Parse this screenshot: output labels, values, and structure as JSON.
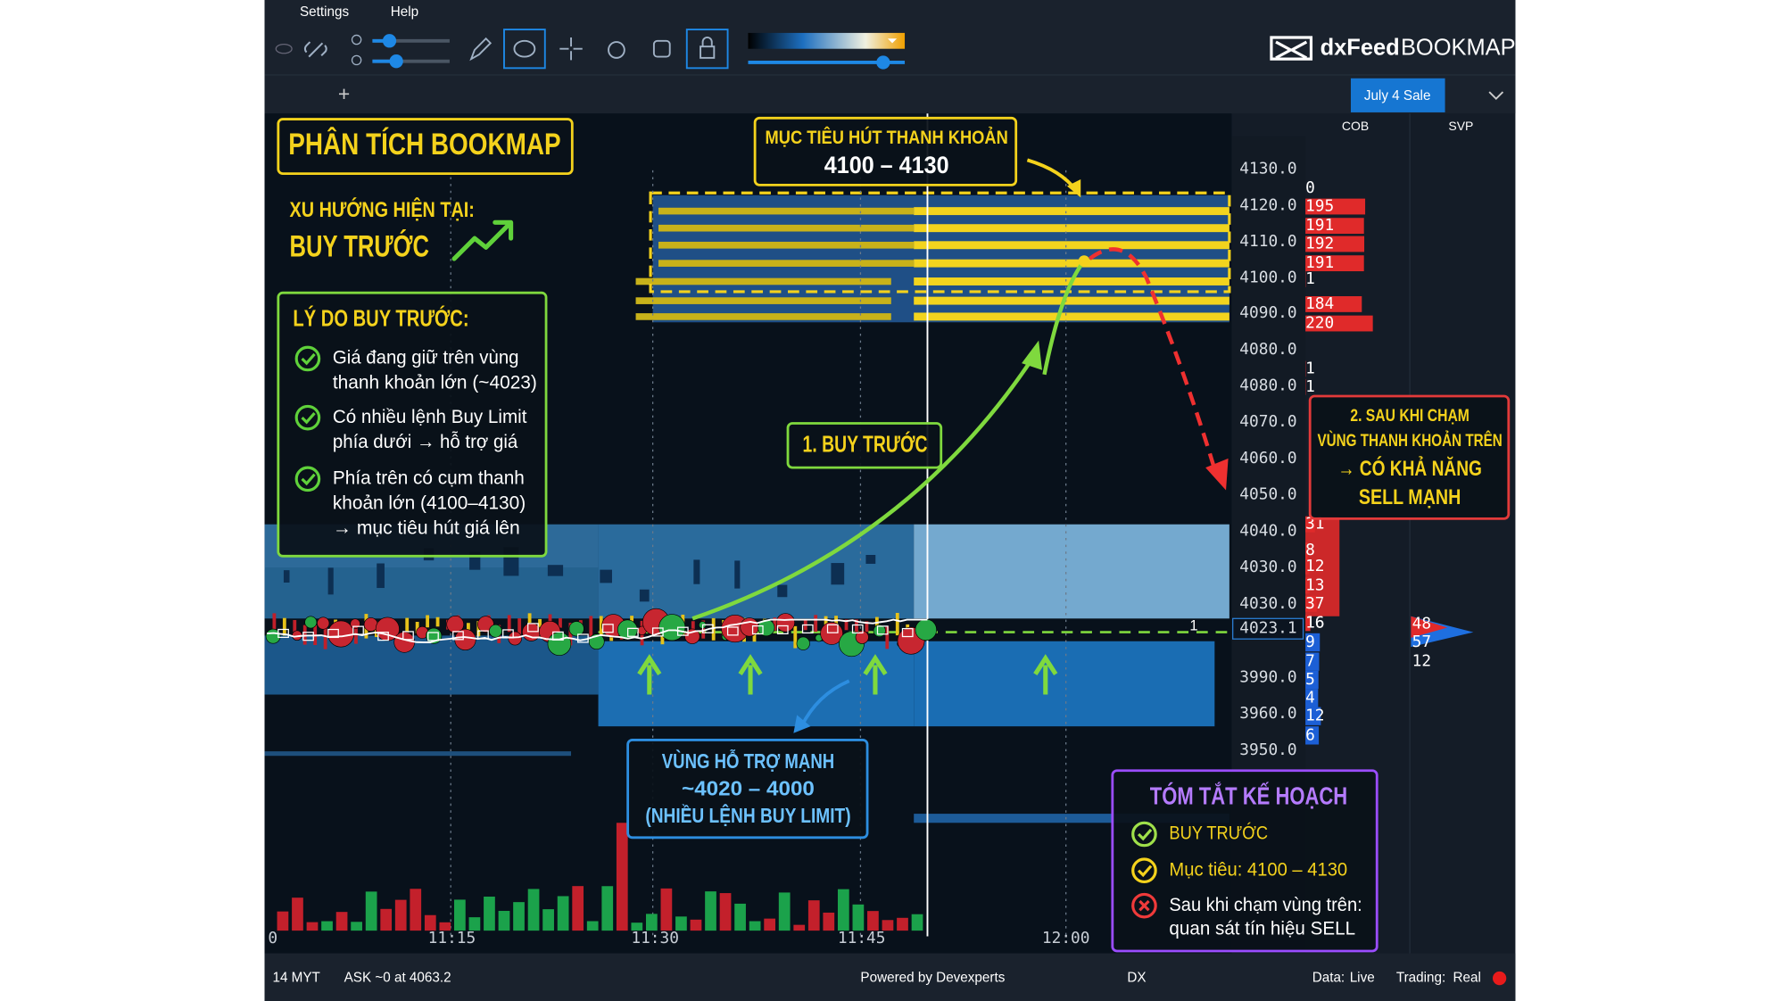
{
  "menu": {
    "settings": "Settings",
    "help": "Help"
  },
  "logo": {
    "brand": "dxFeed",
    "product": "BOOKMAP"
  },
  "promo_button": "July 4 Sale",
  "new_tab": "+",
  "columns": {
    "cob": "COB",
    "svp": "SVP"
  },
  "price_axis": [
    "4130.0",
    "4120.0",
    "4110.0",
    "4100.0",
    "4090.0",
    "4080.0",
    "4080.0",
    "4070.0",
    "4060.0",
    "4050.0",
    "4040.0",
    "4030.0",
    "4030.0",
    "3990.0",
    "3960.0",
    "3950.0"
  ],
  "current_price": "4023.1",
  "time_axis": [
    "0",
    "11:15",
    "11:30",
    "11:45",
    "12:00"
  ],
  "cob": {
    "ask": [
      0,
      195,
      191,
      192,
      191,
      1,
      184,
      220,
      1,
      1,
      31,
      8,
      12,
      13,
      37,
      16
    ],
    "bid": [
      9,
      7,
      5,
      4,
      12,
      6
    ]
  },
  "svp": [
    48,
    57,
    12
  ],
  "trade_marker": "1",
  "annotations": {
    "title": "PHÂN TÍCH BOOKMAP",
    "trend": {
      "label": "XU HƯỚNG HIỆN TẠI:",
      "value": "BUY TRƯỚC"
    },
    "reasons": {
      "title": "LÝ DO BUY TRƯỚC:",
      "items": [
        [
          "Giá đang giữ trên vùng",
          "thanh khoản lớn (~4023)"
        ],
        [
          "Có nhiều lệnh Buy Limit",
          "phía dưới → hỗ trợ giá"
        ],
        [
          "Phía trên có cụm thanh",
          "khoản lớn (4100–4130)",
          "→ mục tiêu hút giá lên"
        ]
      ]
    },
    "target": {
      "title": "MỤC TIÊU HÚT THANH KHOẢN",
      "range": "4100 – 4130"
    },
    "step1": "1. BUY TRƯỚC",
    "step2": [
      "2. SAU KHI CHẠM",
      "VÙNG THANH KHOẢN TRÊN",
      "→ CÓ KHẢ NĂNG",
      "SELL MẠNH"
    ],
    "support": [
      "VÙNG HỖ TRỢ MẠNH",
      "~4020 – 4000",
      "(NHIỀU LỆNH BUY LIMIT)"
    ],
    "plan": {
      "title": "TÓM TẮT KẾ HOẠCH",
      "items": [
        [
          "BUY TRƯỚC"
        ],
        [
          "Mục tiêu: 4100 – 4130"
        ],
        [
          "Sau khi chạm vùng trên:",
          "quan sát tín hiệu SELL"
        ]
      ]
    }
  },
  "status_bar": {
    "timezone": "14 MYT",
    "ask": "ASK ~0 at 4063.2",
    "powered_by": "Powered by Devexperts",
    "exchange": "DX",
    "data_label": "Data:",
    "data_value": "Live",
    "trading_label": "Trading:",
    "trading_value": "Real"
  }
}
